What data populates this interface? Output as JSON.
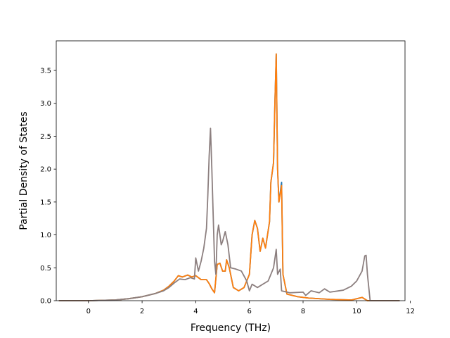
{
  "chart_data": {
    "type": "line",
    "xlabel": "Frequency (THz)",
    "ylabel": "Partial Density of States",
    "xlim": [
      -1.2,
      11.8
    ],
    "ylim": [
      0.0,
      3.95
    ],
    "xticks": [
      0,
      2,
      4,
      6,
      8,
      10,
      12
    ],
    "yticks": [
      0.0,
      0.5,
      1.0,
      1.5,
      2.0,
      2.5,
      3.0,
      3.5
    ],
    "grid": false,
    "series": [
      {
        "color": "#1f77b4",
        "points": [
          [
            -1.1,
            0
          ],
          [
            0,
            0
          ],
          [
            0.5,
            0.005
          ],
          [
            1.0,
            0.01
          ],
          [
            1.5,
            0.03
          ],
          [
            2.0,
            0.06
          ],
          [
            2.5,
            0.11
          ],
          [
            2.8,
            0.16
          ],
          [
            3.0,
            0.22
          ],
          [
            3.2,
            0.3
          ],
          [
            3.35,
            0.38
          ],
          [
            3.5,
            0.36
          ],
          [
            3.7,
            0.39
          ],
          [
            3.85,
            0.36
          ],
          [
            4.0,
            0.38
          ],
          [
            4.2,
            0.32
          ],
          [
            4.4,
            0.32
          ],
          [
            4.5,
            0.26
          ],
          [
            4.6,
            0.18
          ],
          [
            4.7,
            0.12
          ],
          [
            4.8,
            0.55
          ],
          [
            4.9,
            0.57
          ],
          [
            5.0,
            0.45
          ],
          [
            5.1,
            0.45
          ],
          [
            5.15,
            0.62
          ],
          [
            5.25,
            0.5
          ],
          [
            5.4,
            0.2
          ],
          [
            5.6,
            0.15
          ],
          [
            5.8,
            0.2
          ],
          [
            6.0,
            0.4
          ],
          [
            6.1,
            1.0
          ],
          [
            6.2,
            1.22
          ],
          [
            6.3,
            1.1
          ],
          [
            6.4,
            0.75
          ],
          [
            6.5,
            0.95
          ],
          [
            6.6,
            0.8
          ],
          [
            6.75,
            1.2
          ],
          [
            6.8,
            1.8
          ],
          [
            6.9,
            2.1
          ],
          [
            6.95,
            3.0
          ],
          [
            7.0,
            3.75
          ],
          [
            7.05,
            2.0
          ],
          [
            7.1,
            1.5
          ],
          [
            7.2,
            1.8
          ],
          [
            7.25,
            0.4
          ],
          [
            7.4,
            0.1
          ],
          [
            7.8,
            0.06
          ],
          [
            8.2,
            0.04
          ],
          [
            9.0,
            0.02
          ],
          [
            9.8,
            0.01
          ],
          [
            10.2,
            0.05
          ],
          [
            10.4,
            0.0
          ],
          [
            11.6,
            0
          ]
        ]
      },
      {
        "color": "#ff7f0e",
        "points": [
          [
            -1.1,
            0
          ],
          [
            0,
            0
          ],
          [
            0.5,
            0.005
          ],
          [
            1.0,
            0.01
          ],
          [
            1.5,
            0.03
          ],
          [
            2.0,
            0.06
          ],
          [
            2.5,
            0.11
          ],
          [
            2.8,
            0.16
          ],
          [
            3.0,
            0.22
          ],
          [
            3.2,
            0.3
          ],
          [
            3.35,
            0.38
          ],
          [
            3.5,
            0.36
          ],
          [
            3.7,
            0.39
          ],
          [
            3.85,
            0.36
          ],
          [
            4.0,
            0.38
          ],
          [
            4.2,
            0.32
          ],
          [
            4.4,
            0.32
          ],
          [
            4.5,
            0.26
          ],
          [
            4.6,
            0.18
          ],
          [
            4.7,
            0.12
          ],
          [
            4.8,
            0.55
          ],
          [
            4.9,
            0.57
          ],
          [
            5.0,
            0.45
          ],
          [
            5.1,
            0.45
          ],
          [
            5.15,
            0.62
          ],
          [
            5.25,
            0.5
          ],
          [
            5.4,
            0.2
          ],
          [
            5.6,
            0.15
          ],
          [
            5.8,
            0.2
          ],
          [
            6.0,
            0.4
          ],
          [
            6.1,
            1.0
          ],
          [
            6.2,
            1.22
          ],
          [
            6.3,
            1.1
          ],
          [
            6.4,
            0.75
          ],
          [
            6.5,
            0.95
          ],
          [
            6.6,
            0.8
          ],
          [
            6.75,
            1.2
          ],
          [
            6.8,
            1.8
          ],
          [
            6.9,
            2.1
          ],
          [
            6.95,
            3.0
          ],
          [
            7.0,
            3.75
          ],
          [
            7.05,
            2.0
          ],
          [
            7.1,
            1.5
          ],
          [
            7.2,
            1.75
          ],
          [
            7.25,
            0.4
          ],
          [
            7.4,
            0.1
          ],
          [
            7.8,
            0.06
          ],
          [
            8.2,
            0.04
          ],
          [
            9.0,
            0.02
          ],
          [
            9.8,
            0.01
          ],
          [
            10.2,
            0.05
          ],
          [
            10.4,
            0.0
          ],
          [
            11.6,
            0
          ]
        ]
      },
      {
        "color": "#8c7f7f",
        "points": [
          [
            -1.1,
            0
          ],
          [
            0,
            0
          ],
          [
            0.5,
            0.005
          ],
          [
            1.0,
            0.01
          ],
          [
            1.5,
            0.03
          ],
          [
            2.0,
            0.06
          ],
          [
            2.5,
            0.11
          ],
          [
            2.8,
            0.15
          ],
          [
            3.0,
            0.2
          ],
          [
            3.2,
            0.27
          ],
          [
            3.4,
            0.33
          ],
          [
            3.6,
            0.32
          ],
          [
            3.8,
            0.35
          ],
          [
            3.95,
            0.33
          ],
          [
            4.0,
            0.65
          ],
          [
            4.1,
            0.45
          ],
          [
            4.2,
            0.6
          ],
          [
            4.3,
            0.8
          ],
          [
            4.4,
            1.1
          ],
          [
            4.45,
            1.6
          ],
          [
            4.5,
            2.2
          ],
          [
            4.55,
            2.62
          ],
          [
            4.6,
            2.0
          ],
          [
            4.7,
            0.6
          ],
          [
            4.75,
            0.4
          ],
          [
            4.8,
            1.0
          ],
          [
            4.85,
            1.15
          ],
          [
            4.95,
            0.85
          ],
          [
            5.0,
            0.9
          ],
          [
            5.1,
            1.05
          ],
          [
            5.2,
            0.85
          ],
          [
            5.3,
            0.5
          ],
          [
            5.5,
            0.48
          ],
          [
            5.7,
            0.45
          ],
          [
            5.9,
            0.3
          ],
          [
            6.0,
            0.15
          ],
          [
            6.1,
            0.25
          ],
          [
            6.3,
            0.2
          ],
          [
            6.5,
            0.25
          ],
          [
            6.7,
            0.3
          ],
          [
            6.9,
            0.5
          ],
          [
            7.0,
            0.78
          ],
          [
            7.05,
            0.4
          ],
          [
            7.15,
            0.48
          ],
          [
            7.2,
            0.15
          ],
          [
            7.5,
            0.12
          ],
          [
            8.0,
            0.13
          ],
          [
            8.1,
            0.08
          ],
          [
            8.3,
            0.15
          ],
          [
            8.6,
            0.12
          ],
          [
            8.8,
            0.18
          ],
          [
            9.0,
            0.13
          ],
          [
            9.5,
            0.16
          ],
          [
            9.8,
            0.22
          ],
          [
            10.0,
            0.3
          ],
          [
            10.2,
            0.45
          ],
          [
            10.3,
            0.68
          ],
          [
            10.35,
            0.69
          ],
          [
            10.4,
            0.4
          ],
          [
            10.5,
            0.0
          ],
          [
            11.6,
            0
          ]
        ]
      }
    ]
  }
}
